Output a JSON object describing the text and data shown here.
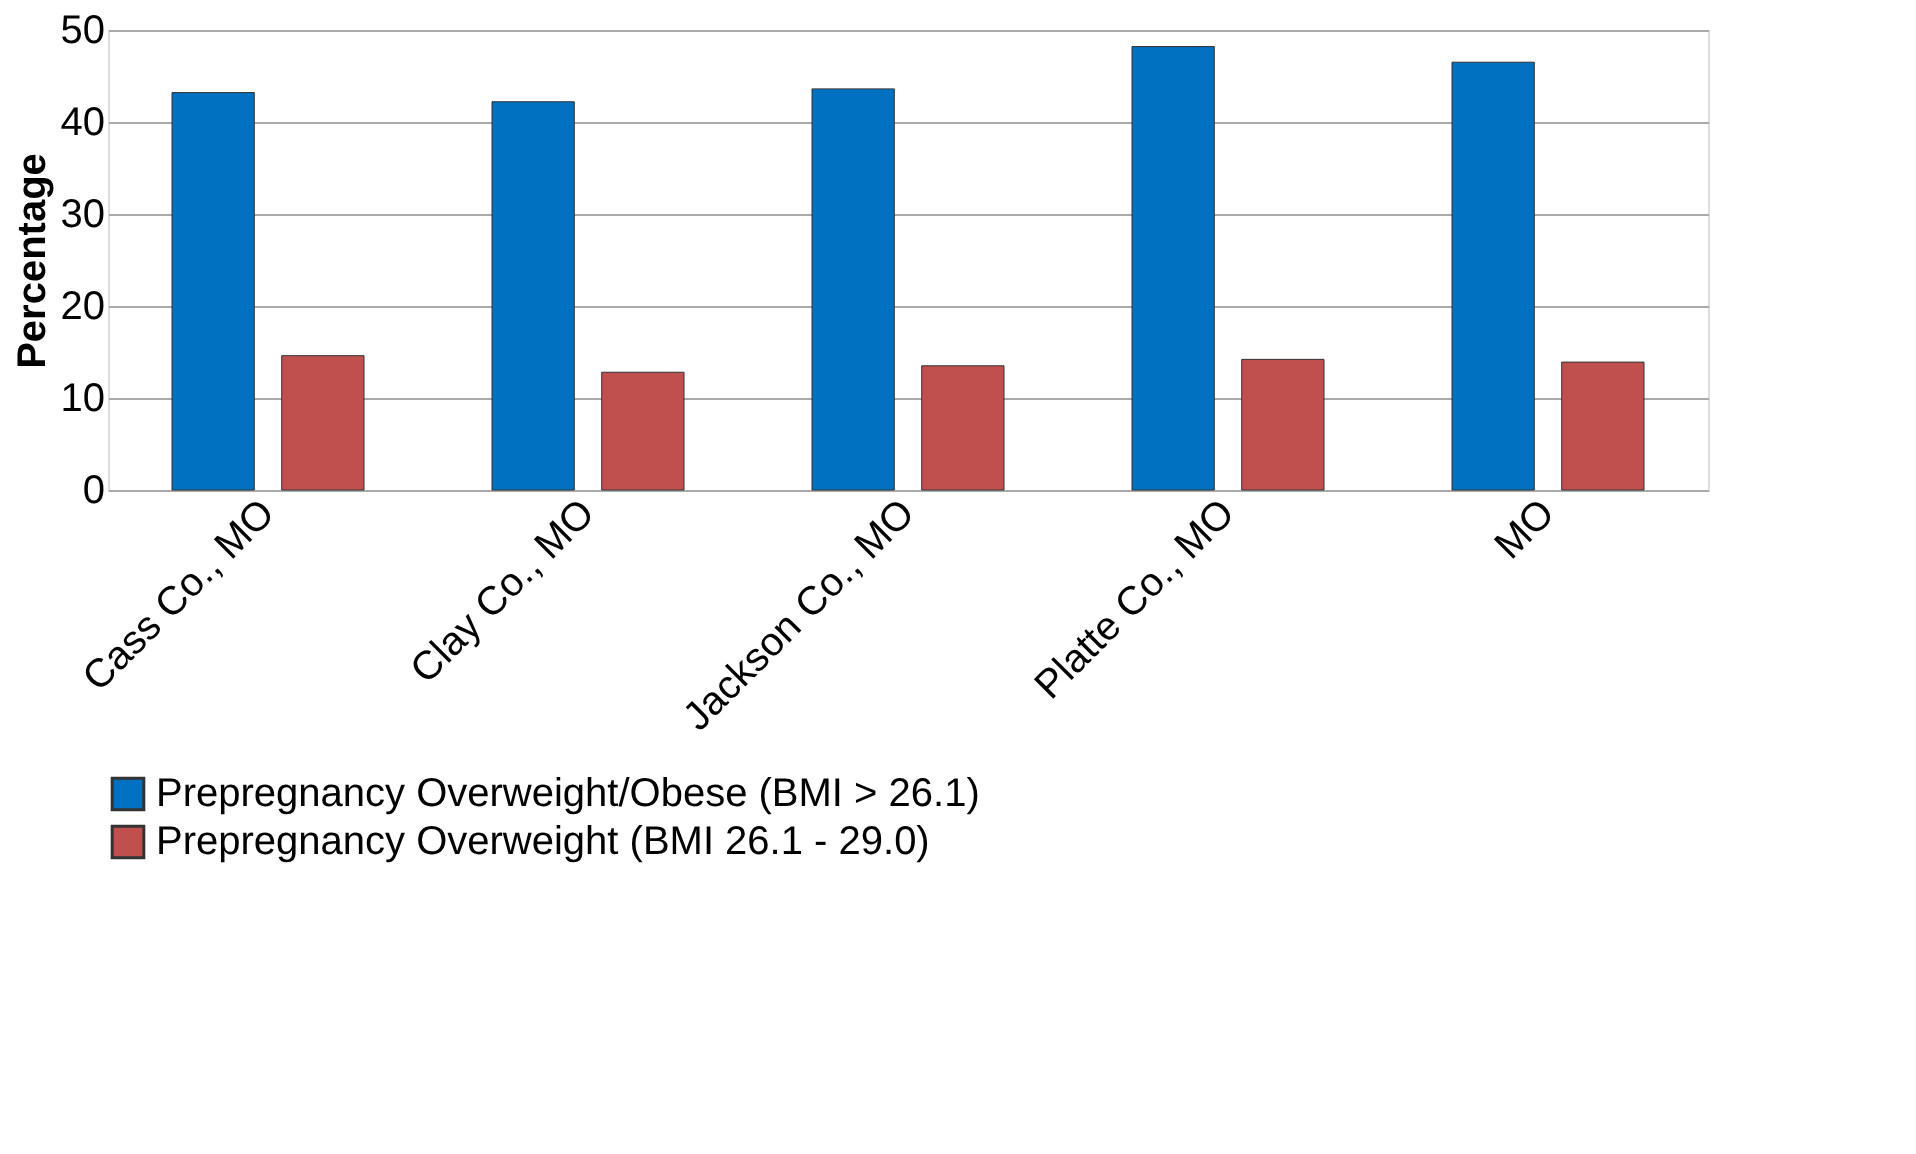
{
  "chart_data": {
    "type": "bar",
    "ylabel": "Percentage",
    "categories": [
      "Cass Co., MO",
      "Clay Co., MO",
      "Jackson Co., MO",
      "Platte Co., MO",
      "MO"
    ],
    "series": [
      {
        "name": "Prepregnancy Overweight/Obese (BMI > 26.1)",
        "color": "#0070c0",
        "values": [
          43.2,
          42.2,
          43.6,
          48.2,
          46.5
        ]
      },
      {
        "name": "Prepregnancy Overweight (BMI 26.1 - 29.0)",
        "color": "#c0504d",
        "values": [
          14.6,
          12.8,
          13.5,
          14.2,
          13.9
        ]
      }
    ],
    "ylim": [
      0,
      50
    ],
    "yticks": [
      0,
      10,
      20,
      30,
      40,
      50
    ],
    "grid": "y",
    "legend": "bottom"
  }
}
